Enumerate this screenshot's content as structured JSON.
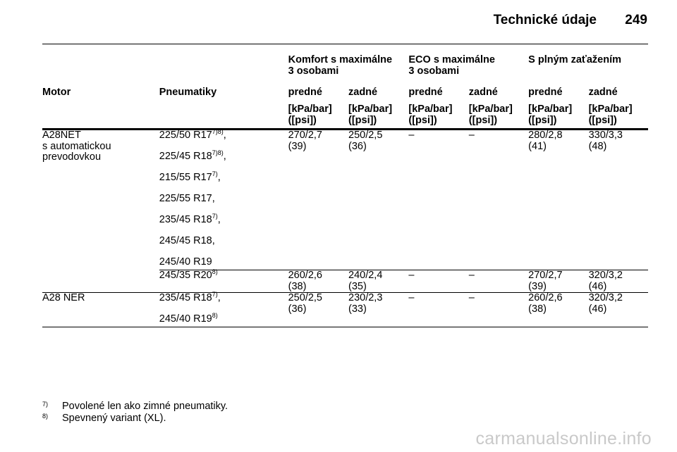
{
  "header": {
    "title": "Technické údaje",
    "page": "249"
  },
  "table": {
    "group_headers": [
      "Komfort s maximálne\n3 osobami",
      "ECO s maximálne\n3 osobami",
      "S plným zaťažením"
    ],
    "col_motor": "Motor",
    "col_tyres": "Pneumatiky",
    "sub_headers": [
      "predné",
      "zadné",
      "predné",
      "zadné",
      "predné",
      "zadné"
    ],
    "unit": "[kPa/bar]\n([psi])",
    "rows": [
      {
        "motor": "A28NET\ns automatickou\nprevodovkou",
        "tyres": [
          {
            "t": "225/50 R17",
            "s": "7)8)",
            "p": ","
          },
          {
            "t": "225/45 R18",
            "s": "7)8)",
            "p": ","
          },
          {
            "t": "215/55 R17",
            "s": "7)",
            "p": ","
          },
          {
            "t": "225/55 R17,",
            "s": "",
            "p": ""
          },
          {
            "t": "235/45 R18",
            "s": "7)",
            "p": ","
          },
          {
            "t": "245/45 R18,",
            "s": "",
            "p": ""
          },
          {
            "t": "245/40 R19",
            "s": "",
            "p": ""
          }
        ],
        "values": [
          "270/2,7\n(39)",
          "250/2,5\n(36)",
          "–",
          "–",
          "280/2,8\n(41)",
          "330/3,3\n(48)"
        ]
      },
      {
        "motor": "",
        "tyres": [
          {
            "t": "245/35 R20",
            "s": "8)",
            "p": ""
          }
        ],
        "values": [
          "260/2,6\n(38)",
          "240/2,4\n(35)",
          "–",
          "–",
          "270/2,7\n(39)",
          "320/3,2\n(46)"
        ]
      },
      {
        "motor": "A28 NER",
        "tyres": [
          {
            "t": "235/45 R18",
            "s": "7)",
            "p": ","
          },
          {
            "t": "245/40 R19",
            "s": "8)",
            "p": ""
          }
        ],
        "values": [
          "250/2,5\n(36)",
          "230/2,3\n(33)",
          "–",
          "–",
          "260/2,6\n(38)",
          "320/3,2\n(46)"
        ]
      }
    ]
  },
  "footnotes": [
    {
      "num": "7)",
      "text": "Povolené len ako zimné pneumatiky."
    },
    {
      "num": "8)",
      "text": "Spevnený variant (XL)."
    }
  ],
  "watermark": "carmanualsonline.info"
}
